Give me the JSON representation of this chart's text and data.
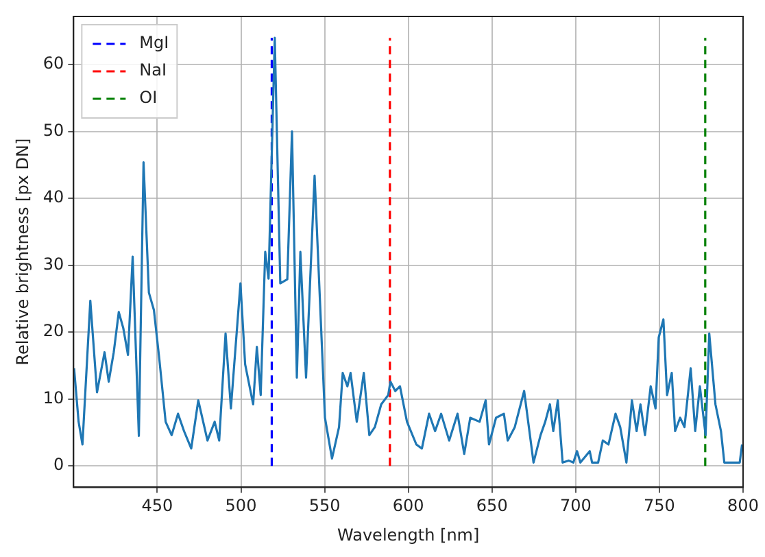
{
  "chart_data": {
    "type": "line",
    "xlabel": "Wavelength [nm]",
    "ylabel": "Relative brightness [px DN]",
    "xlim": [
      400,
      800
    ],
    "xticks": [
      450,
      500,
      550,
      600,
      650,
      700,
      750,
      800
    ],
    "ylim": [
      -3.2,
      67.2
    ],
    "yticks": [
      0,
      10,
      20,
      30,
      40,
      50,
      60
    ],
    "grid": true,
    "legend": "top left",
    "marker": "none",
    "series": [
      {
        "color": "#1f77b4",
        "line_style": "solid",
        "x": [
          400.3,
          403,
          405.3,
          410,
          414,
          418.5,
          421,
          424,
          427,
          429.7,
          432.5,
          435.3,
          439,
          441.8,
          445,
          448,
          451.3,
          455,
          458.6,
          462.4,
          466,
          470.3,
          474.5,
          480,
          484.3,
          487,
          490.8,
          494,
          496,
          499.7,
          502.5,
          507.3,
          509.5,
          511.8,
          514.5,
          516.5,
          520.2,
          523.5,
          527.7,
          530.5,
          533.4,
          535.5,
          538.9,
          544,
          550.2,
          554.4,
          558.6,
          560.8,
          563.6,
          565.5,
          569.2,
          573.4,
          576.7,
          580,
          583.8,
          588,
          589.3,
          592.2,
          595,
          599.2,
          604.8,
          608.1,
          612.4,
          616,
          619.6,
          624.4,
          629.4,
          633.4,
          637,
          642.6,
          646.2,
          648.2,
          652.4,
          657.1,
          659.4,
          663.6,
          669.2,
          674.8,
          679,
          681.8,
          684.6,
          686.6,
          689.3,
          692.2,
          695.8,
          698.6,
          700.8,
          702.8,
          708.4,
          709.8,
          713.4,
          716.2,
          719.6,
          723.8,
          726.6,
          730.3,
          733.6,
          736.4,
          738.7,
          741.4,
          744.8,
          747.7,
          749.6,
          752.4,
          754.6,
          757.4,
          759.4,
          762.4,
          765,
          768.7,
          771.4,
          774.2,
          777.6,
          779.8,
          783.5,
          786.8,
          788.8,
          798,
          799.4
        ],
        "values": [
          14.6,
          6.6,
          3.2,
          24.7,
          11,
          17,
          12.6,
          17,
          23,
          20.6,
          16.6,
          31.3,
          4.5,
          45.4,
          25.9,
          23.3,
          15.8,
          6.6,
          4.6,
          7.8,
          5.2,
          2.6,
          9.8,
          3.8,
          6.6,
          3.8,
          19.8,
          8.6,
          15.2,
          27.3,
          15.2,
          9.2,
          17.8,
          10.6,
          32,
          28,
          64,
          27.3,
          27.9,
          50,
          13.2,
          32,
          13.2,
          43.4,
          7.2,
          1.1,
          5.8,
          13.9,
          11.9,
          13.9,
          6.6,
          13.9,
          4.6,
          5.8,
          9.2,
          10.6,
          12.6,
          11.2,
          11.9,
          6.6,
          3.2,
          2.6,
          7.8,
          5.2,
          7.8,
          3.8,
          7.8,
          1.8,
          7.2,
          6.6,
          9.8,
          3.2,
          7.2,
          7.8,
          3.8,
          5.8,
          11.2,
          0.5,
          4.6,
          6.6,
          9.2,
          5.2,
          9.8,
          0.5,
          0.8,
          0.5,
          2.2,
          0.5,
          2.2,
          0.5,
          0.5,
          3.8,
          3.2,
          7.8,
          5.8,
          0.5,
          9.8,
          5.2,
          9.2,
          4.6,
          11.9,
          8.6,
          19.2,
          21.9,
          10.6,
          13.9,
          5.2,
          7.2,
          5.8,
          14.6,
          5.2,
          11.9,
          4.6,
          19.8,
          9.2,
          5.2,
          0.5,
          0.5,
          3.2
        ]
      },
      {
        "name": "MgI",
        "color": "#0000ff",
        "line_style": "dashed",
        "x": [
          518.4,
          518.4
        ],
        "values": [
          0,
          64
        ]
      },
      {
        "name": "NaI",
        "color": "#ff0000",
        "line_style": "dashed",
        "x": [
          589,
          589
        ],
        "values": [
          0,
          64
        ]
      },
      {
        "name": "OI",
        "color": "#008000",
        "line_style": "dashed",
        "x": [
          777.4,
          777.4
        ],
        "values": [
          0,
          64
        ]
      }
    ]
  }
}
